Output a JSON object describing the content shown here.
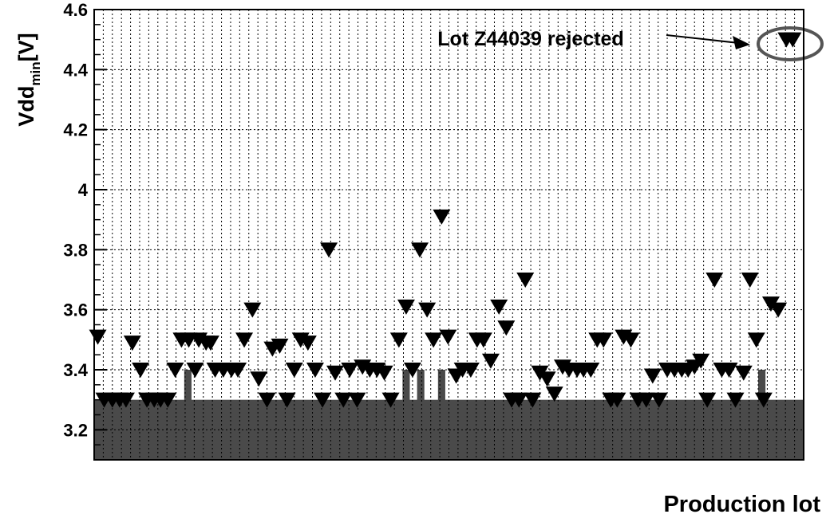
{
  "chart_data": {
    "type": "scatter",
    "ylabel": "Vdd",
    "ylabel_sub": "min",
    "ylabel_unit": "[V]",
    "xlabel": "Production lot",
    "annotation": "Lot Z44039 rejected",
    "xlim": [
      0,
      78
    ],
    "ylim": [
      3.1,
      4.6
    ],
    "yticks": [
      3.2,
      3.4,
      3.6,
      3.8,
      4,
      4.2,
      4.4,
      4.6
    ],
    "grid": true,
    "marker_color": "#000000",
    "fill_color": "#4a4a4a",
    "fill_level": 3.3,
    "raised_bars": {
      "x": [
        10.3,
        34.3,
        35.9,
        38.2,
        73.4
      ],
      "values": [
        3.4,
        3.4,
        3.4,
        3.4,
        3.4
      ]
    },
    "x": [
      0.4,
      1.1,
      2.0,
      2.8,
      3.5,
      4.2,
      5.1,
      5.8,
      6.6,
      7.3,
      8.1,
      8.9,
      9.6,
      10.4,
      11.1,
      11.5,
      12.3,
      12.8,
      13.3,
      14.2,
      15.1,
      15.8,
      16.5,
      17.4,
      18.1,
      19.0,
      19.6,
      20.4,
      21.2,
      22.0,
      22.7,
      23.5,
      24.3,
      25.1,
      25.8,
      26.5,
      27.4,
      28.1,
      28.9,
      29.5,
      30.3,
      31.1,
      31.9,
      32.6,
      33.5,
      34.3,
      35.0,
      35.8,
      36.6,
      37.3,
      38.2,
      38.9,
      39.8,
      40.5,
      41.4,
      42.1,
      42.8,
      43.6,
      44.5,
      45.3,
      45.9,
      46.7,
      47.4,
      48.2,
      49.0,
      49.8,
      50.6,
      51.5,
      52.2,
      53.1,
      53.8,
      54.6,
      55.3,
      56.0,
      56.8,
      57.5,
      58.2,
      59.0,
      59.8,
      60.7,
      61.4,
      62.1,
      63.0,
      63.8,
      64.6,
      65.3,
      66.0,
      66.7,
      67.4,
      68.2,
      69.0,
      69.8,
      70.5,
      71.4,
      72.1,
      72.8,
      73.6,
      74.4,
      75.2,
      76.1,
      76.8
    ],
    "values": [
      3.51,
      3.3,
      3.3,
      3.3,
      3.3,
      3.49,
      3.4,
      3.3,
      3.3,
      3.3,
      3.3,
      3.4,
      3.5,
      3.5,
      3.4,
      3.5,
      3.49,
      3.49,
      3.4,
      3.4,
      3.4,
      3.4,
      3.5,
      3.6,
      3.37,
      3.3,
      3.47,
      3.48,
      3.3,
      3.4,
      3.5,
      3.49,
      3.4,
      3.3,
      3.8,
      3.39,
      3.3,
      3.4,
      3.3,
      3.41,
      3.4,
      3.4,
      3.39,
      3.3,
      3.5,
      3.61,
      3.4,
      3.8,
      3.6,
      3.5,
      3.91,
      3.51,
      3.38,
      3.4,
      3.4,
      3.5,
      3.5,
      3.43,
      3.61,
      3.54,
      3.3,
      3.3,
      3.7,
      3.3,
      3.39,
      3.37,
      3.32,
      3.41,
      3.4,
      3.4,
      3.4,
      3.4,
      3.5,
      3.5,
      3.3,
      3.3,
      3.51,
      3.5,
      3.3,
      3.3,
      3.38,
      3.3,
      3.4,
      3.4,
      3.4,
      3.4,
      3.41,
      3.43,
      3.3,
      3.7,
      3.4,
      3.4,
      3.3,
      3.39,
      3.7,
      3.5,
      3.3,
      3.62,
      3.6,
      4.5,
      4.5
    ]
  }
}
